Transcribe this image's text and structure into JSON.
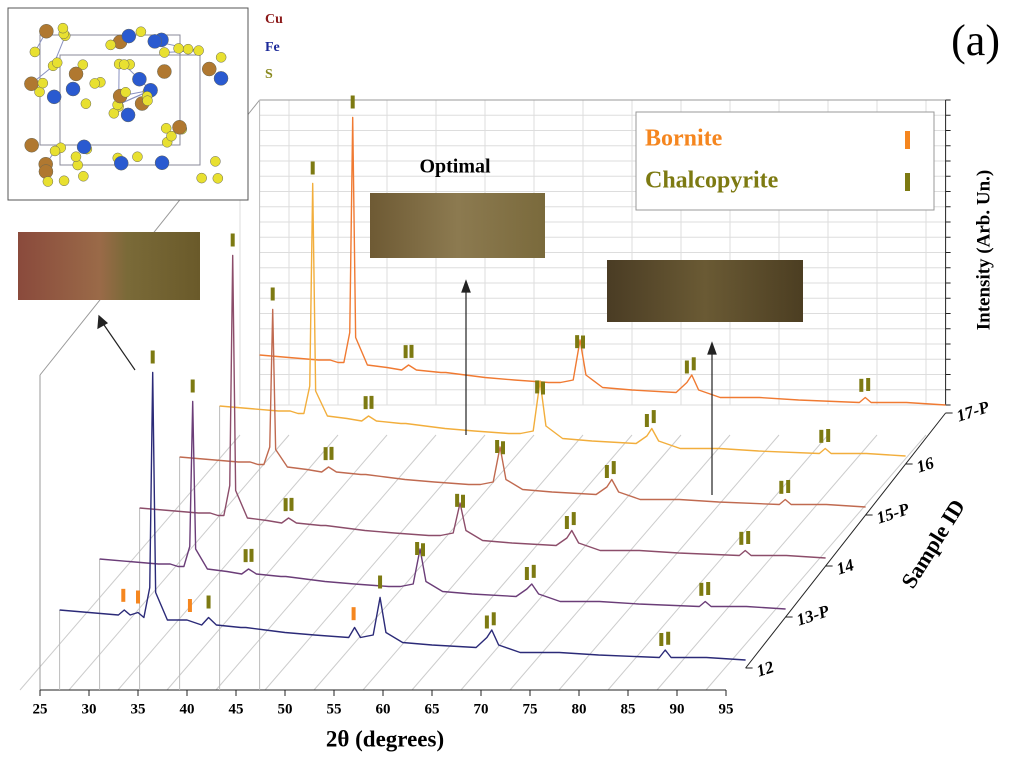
{
  "chart_data": {
    "type": "line",
    "panel_label": "(a)",
    "x_label": "2θ (degrees)",
    "y_label": "Intensity (Arb. Un.)",
    "z_label": "Sample ID",
    "image_label": "Optimal",
    "inset_labels": [
      "Cu",
      "Fe",
      "S"
    ],
    "xlim": [
      25,
      95
    ],
    "xticks": [
      25,
      30,
      35,
      40,
      45,
      50,
      55,
      60,
      65,
      70,
      75,
      80,
      85,
      90,
      95
    ],
    "ylim": [
      0,
      122
    ],
    "grid": true,
    "phases": [
      {
        "name": "Bornite",
        "color": "#f5861f"
      },
      {
        "name": "Chalcopyrite",
        "color": "#7d7a12"
      }
    ],
    "x": [
      27,
      30,
      33,
      33.6,
      34.2,
      35,
      35.6,
      36.2,
      36.5,
      36.8,
      38,
      40,
      41.5,
      42.2,
      43,
      45.5,
      46,
      48,
      50,
      53,
      56.5,
      57.1,
      57.7,
      59,
      59.7,
      60.3,
      62,
      65,
      69.5,
      70.6,
      71.1,
      71.8,
      74,
      78,
      82,
      88.2,
      88.8,
      89.4,
      93,
      97
    ],
    "series": [
      {
        "name": "12",
        "color": "#2b2a78",
        "values": [
          20,
          19,
          18,
          20,
          18,
          19,
          17,
          29,
          115,
          27,
          16,
          16,
          14,
          17,
          14,
          13,
          13,
          12,
          11,
          10,
          9,
          13,
          9,
          10,
          25,
          11,
          7,
          6,
          5,
          9,
          12,
          6,
          3,
          3,
          2,
          1,
          4,
          1,
          1,
          0
        ],
        "phase_peaks": [
          [
            33.5,
            35,
            40.3,
            57
          ],
          [
            36.5,
            42.2,
            59.7,
            70.6,
            71.3,
            88.4,
            89.1
          ]
        ]
      },
      {
        "name": "13-P",
        "color": "#6b3d78",
        "values": [
          20,
          19,
          18,
          18,
          18,
          17,
          17,
          25,
          83,
          24,
          16,
          15,
          14,
          16,
          14,
          13,
          13,
          12,
          11,
          10,
          9,
          9,
          9,
          10,
          24,
          11,
          7,
          6,
          5,
          8,
          10,
          6,
          3,
          3,
          2,
          1,
          3,
          1,
          1,
          0
        ],
        "phase_peaks": [
          [],
          [
            36.5,
            41.9,
            42.5,
            59.4,
            60.0,
            70.6,
            71.3,
            88.4,
            89.1
          ]
        ]
      },
      {
        "name": "14",
        "color": "#8c4d6a",
        "values": [
          20,
          19,
          18,
          18,
          18,
          17,
          17,
          29,
          121,
          27,
          16,
          15,
          14,
          16,
          14,
          13,
          13,
          12,
          11,
          10,
          9,
          9,
          9,
          10,
          22,
          11,
          7,
          6,
          5,
          8,
          11,
          6,
          3,
          3,
          2,
          1,
          3,
          1,
          1,
          0
        ],
        "phase_peaks": [
          [],
          [
            36.5,
            41.9,
            42.5,
            59.4,
            60.0,
            70.6,
            71.3,
            88.4,
            89.1
          ]
        ]
      },
      {
        "name": "15-P",
        "color": "#c06a50",
        "values": [
          20,
          19,
          18,
          18,
          18,
          17,
          17,
          24,
          79,
          23,
          16,
          15,
          14,
          16,
          14,
          13,
          13,
          12,
          11,
          10,
          9,
          9,
          9,
          10,
          24,
          11,
          7,
          6,
          5,
          8,
          11,
          6,
          3,
          3,
          2,
          1,
          3,
          1,
          1,
          0
        ],
        "phase_peaks": [
          [],
          [
            36.5,
            41.9,
            42.5,
            59.4,
            60.0,
            70.6,
            71.3,
            88.4,
            89.1
          ]
        ]
      },
      {
        "name": "16",
        "color": "#f2ae3c",
        "values": [
          20,
          19,
          18,
          18,
          18,
          17,
          17,
          28,
          109,
          26,
          16,
          15,
          14,
          16,
          14,
          13,
          13,
          12,
          11,
          10,
          9,
          9,
          9,
          10,
          30,
          12,
          7,
          6,
          5,
          8,
          11,
          6,
          3,
          3,
          2,
          1,
          3,
          1,
          1,
          0
        ],
        "phase_peaks": [
          [],
          [
            36.5,
            41.9,
            42.5,
            59.4,
            60.0,
            70.6,
            71.3,
            88.4,
            89.1
          ]
        ]
      },
      {
        "name": "17-P",
        "color": "#f07a32",
        "values": [
          20,
          19,
          18,
          18,
          18,
          17,
          17,
          29,
          115,
          27,
          16,
          15,
          14,
          16,
          14,
          13,
          13,
          12,
          11,
          10,
          9,
          9,
          9,
          10,
          26,
          12,
          7,
          6,
          5,
          9,
          12,
          6,
          3,
          3,
          2,
          1,
          3,
          1,
          1,
          0
        ],
        "phase_peaks": [
          [],
          [
            36.5,
            41.9,
            42.5,
            59.4,
            60.0,
            70.6,
            71.3,
            88.4,
            89.1
          ]
        ]
      }
    ]
  }
}
